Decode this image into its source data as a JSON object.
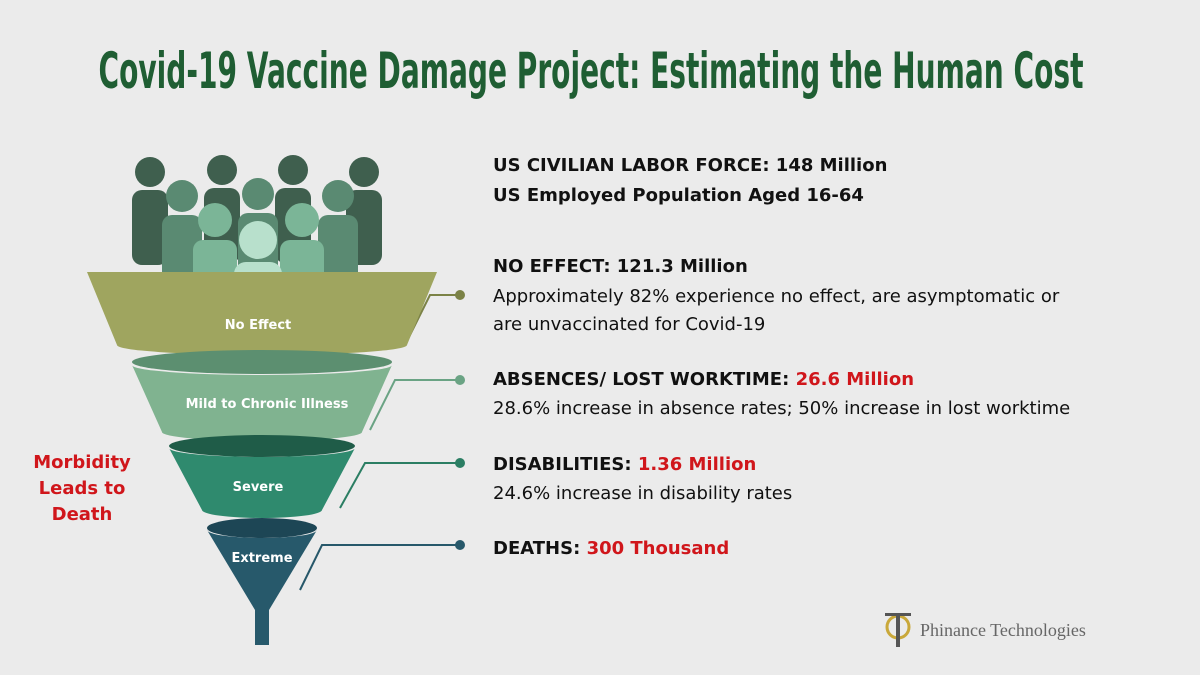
{
  "title": "Covid-19 Vaccine Damage Project:  Estimating the Human Cost",
  "overview": {
    "heading": "US CIVILIAN LABOR FORCE: 148 Million",
    "subheading": "US Employed Population Aged 16-64"
  },
  "funnel": {
    "stages": [
      "No Effect",
      "Mild to Chronic Illness",
      "Severe",
      "Extreme"
    ],
    "side_note": [
      "Morbidity",
      "Leads to",
      "Death"
    ]
  },
  "details": [
    {
      "label": "NO EFFECT: 121.3 Million",
      "description": [
        "Approximately 82% experience no effect, are asymptomatic or",
        "are unvaccinated for Covid-19"
      ]
    },
    {
      "label": "ABSENCES/ LOST WORKTIME:",
      "value": "26.6 Million",
      "description": [
        "28.6% increase in absence rates; 50% increase in lost worktime"
      ]
    },
    {
      "label": "DISABILITIES:",
      "value": "1.36 Million",
      "description": [
        "24.6% increase in disability rates"
      ]
    },
    {
      "label": "DEATHS:",
      "value": "300 Thousand"
    }
  ],
  "logo": {
    "text": "Phinance Technologies"
  }
}
